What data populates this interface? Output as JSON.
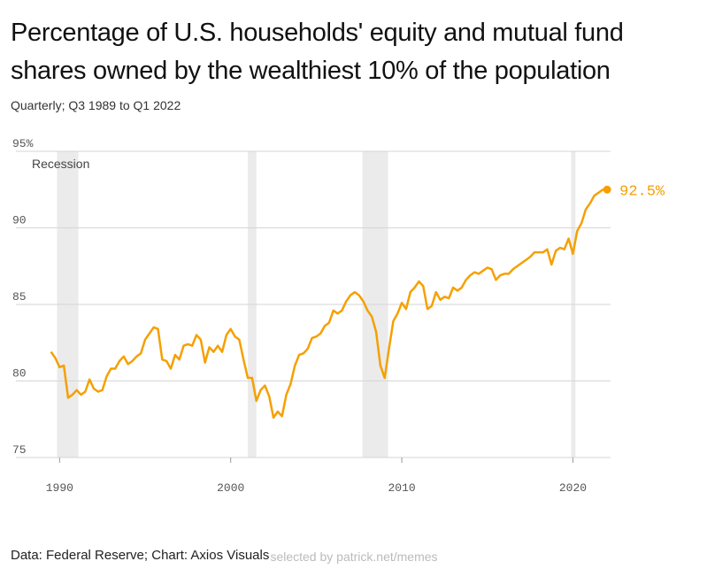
{
  "chart_data": {
    "type": "line",
    "title": "Percentage of U.S. households' equity and mutual fund shares owned by the wealthiest 10% of the population",
    "subtitle": "Quarterly; Q3 1989 to Q1 2022",
    "source": "Data: Federal Reserve; Chart: Axios Visuals",
    "watermark": "selected by patrick.net/memes",
    "color": "#f5a000",
    "recession_label": "Recession",
    "recessions": [
      [
        1989.85,
        1991.1
      ],
      [
        2001.0,
        2001.5
      ],
      [
        2007.7,
        2009.2
      ],
      [
        2019.9,
        2020.15
      ]
    ],
    "end_label": "92.5%",
    "xlim": [
      1989,
      2022.2
    ],
    "xticks": [
      1990,
      2000,
      2010,
      2020
    ],
    "ylim": [
      75,
      95
    ],
    "yticks": [
      75,
      80,
      85,
      90,
      {
        "value": 95,
        "label": "95%"
      }
    ],
    "grid": true,
    "x": [
      1989.5,
      1989.75,
      1990,
      1990.25,
      1990.5,
      1990.75,
      1991,
      1991.25,
      1991.5,
      1991.75,
      1992,
      1992.25,
      1992.5,
      1992.75,
      1993,
      1993.25,
      1993.5,
      1993.75,
      1994,
      1994.25,
      1994.5,
      1994.75,
      1995,
      1995.25,
      1995.5,
      1995.75,
      1996,
      1996.25,
      1996.5,
      1996.75,
      1997,
      1997.25,
      1997.5,
      1997.75,
      1998,
      1998.25,
      1998.5,
      1998.75,
      1999,
      1999.25,
      1999.5,
      1999.75,
      2000,
      2000.25,
      2000.5,
      2000.75,
      2001,
      2001.25,
      2001.5,
      2001.75,
      2002,
      2002.25,
      2002.5,
      2002.75,
      2003,
      2003.25,
      2003.5,
      2003.75,
      2004,
      2004.25,
      2004.5,
      2004.75,
      2005,
      2005.25,
      2005.5,
      2005.75,
      2006,
      2006.25,
      2006.5,
      2006.75,
      2007,
      2007.25,
      2007.5,
      2007.75,
      2008,
      2008.25,
      2008.5,
      2008.75,
      2009,
      2009.25,
      2009.5,
      2009.75,
      2010,
      2010.25,
      2010.5,
      2010.75,
      2011,
      2011.25,
      2011.5,
      2011.75,
      2012,
      2012.25,
      2012.5,
      2012.75,
      2013,
      2013.25,
      2013.5,
      2013.75,
      2014,
      2014.25,
      2014.5,
      2014.75,
      2015,
      2015.25,
      2015.5,
      2015.75,
      2016,
      2016.25,
      2016.5,
      2016.75,
      2017,
      2017.25,
      2017.5,
      2017.75,
      2018,
      2018.25,
      2018.5,
      2018.75,
      2019,
      2019.25,
      2019.5,
      2019.75,
      2020,
      2020.25,
      2020.5,
      2020.75,
      2021,
      2021.25,
      2021.5,
      2021.75,
      2022
    ],
    "values": [
      81.9,
      81.5,
      80.9,
      81.0,
      78.9,
      79.1,
      79.4,
      79.1,
      79.3,
      80.1,
      79.5,
      79.3,
      79.4,
      80.3,
      80.8,
      80.8,
      81.3,
      81.6,
      81.1,
      81.3,
      81.6,
      81.8,
      82.7,
      83.1,
      83.5,
      83.4,
      81.4,
      81.3,
      80.8,
      81.7,
      81.4,
      82.3,
      82.4,
      82.3,
      83.0,
      82.7,
      81.2,
      82.2,
      81.9,
      82.3,
      81.9,
      83.0,
      83.4,
      82.9,
      82.7,
      81.4,
      80.2,
      80.2,
      78.7,
      79.4,
      79.7,
      79.0,
      77.6,
      78.0,
      77.7,
      79.1,
      79.8,
      81.0,
      81.7,
      81.8,
      82.1,
      82.8,
      82.9,
      83.1,
      83.6,
      83.8,
      84.6,
      84.4,
      84.6,
      85.2,
      85.6,
      85.8,
      85.6,
      85.2,
      84.6,
      84.2,
      83.2,
      81.0,
      80.2,
      82.1,
      83.9,
      84.4,
      85.1,
      84.7,
      85.8,
      86.1,
      86.5,
      86.2,
      84.7,
      84.9,
      85.8,
      85.3,
      85.5,
      85.4,
      86.1,
      85.9,
      86.1,
      86.6,
      86.9,
      87.1,
      87.0,
      87.2,
      87.4,
      87.3,
      86.6,
      86.9,
      87.0,
      87.0,
      87.3,
      87.5,
      87.7,
      87.9,
      88.1,
      88.4,
      88.4,
      88.4,
      88.6,
      87.6,
      88.5,
      88.7,
      88.6,
      89.3,
      88.3,
      89.8,
      90.3,
      91.2,
      91.6,
      92.1,
      92.3,
      92.5,
      92.5
    ]
  }
}
